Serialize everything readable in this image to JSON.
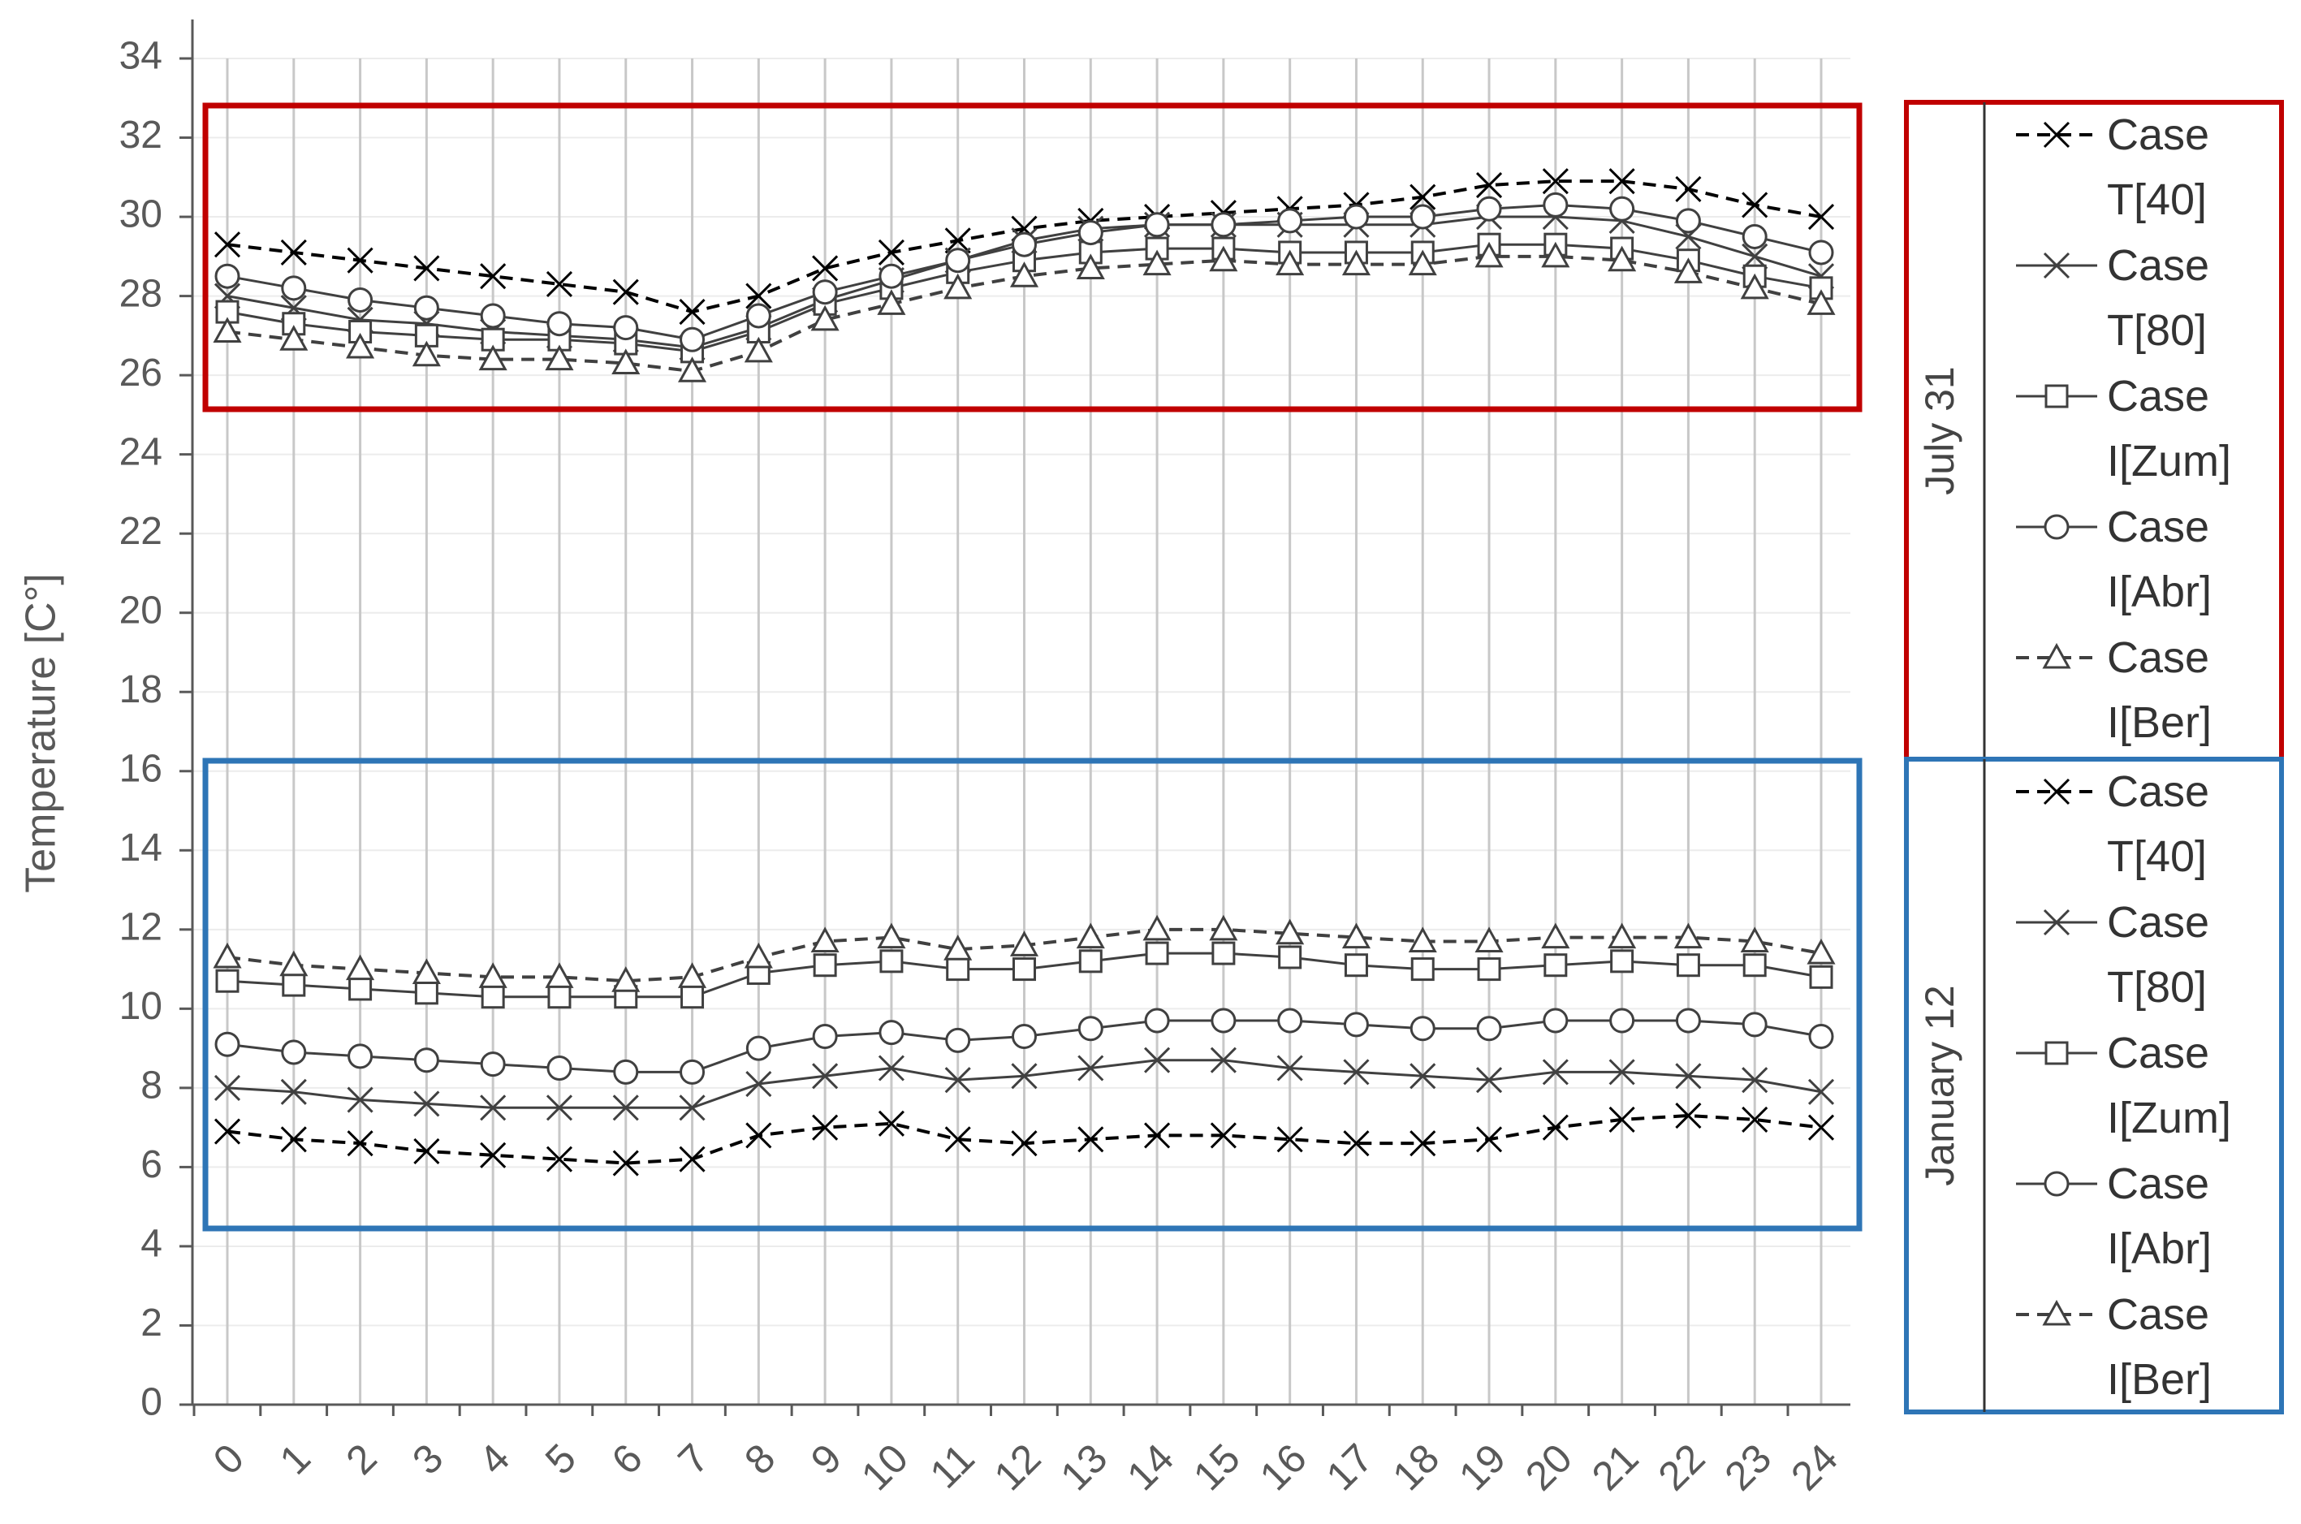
{
  "chart_data": {
    "type": "line",
    "y_label": "Temperature [C°]",
    "categories": [
      "0",
      "1",
      "2",
      "3",
      "4",
      "5",
      "6",
      "7",
      "8",
      "9",
      "10",
      "11",
      "12",
      "13",
      "14",
      "15",
      "16",
      "17",
      "18",
      "19",
      "20",
      "21",
      "22",
      "23",
      "24"
    ],
    "ylim": [
      0,
      34
    ],
    "yticks": [
      0,
      2,
      4,
      6,
      8,
      10,
      12,
      14,
      16,
      18,
      20,
      22,
      24,
      26,
      28,
      30,
      32,
      34
    ],
    "grid": true,
    "groups": [
      {
        "name": "July 31",
        "color": "#c00000",
        "series": [
          {
            "name": "Case T[40]",
            "color": "#000000",
            "dashed": true,
            "marker": "x",
            "values": [
              29.3,
              29.1,
              28.9,
              28.7,
              28.5,
              28.3,
              28.1,
              27.6,
              28.0,
              28.7,
              29.1,
              29.4,
              29.7,
              29.9,
              30.0,
              30.1,
              30.2,
              30.3,
              30.5,
              30.8,
              30.9,
              30.9,
              30.7,
              30.3,
              30.0
            ]
          },
          {
            "name": "Case T[80]",
            "color": "#404040",
            "dashed": false,
            "marker": "x",
            "values": [
              28.0,
              27.7,
              27.4,
              27.3,
              27.1,
              27.0,
              26.9,
              26.7,
              27.2,
              27.9,
              28.4,
              28.9,
              29.4,
              29.7,
              29.8,
              29.8,
              29.8,
              29.8,
              29.8,
              30.0,
              30.0,
              29.9,
              29.5,
              29.0,
              28.5
            ]
          },
          {
            "name": "Case I[Zum]",
            "color": "#404040",
            "dashed": false,
            "marker": "square",
            "values": [
              27.6,
              27.3,
              27.1,
              27.0,
              26.9,
              26.9,
              26.8,
              26.6,
              27.1,
              27.8,
              28.2,
              28.6,
              28.9,
              29.1,
              29.2,
              29.2,
              29.1,
              29.1,
              29.1,
              29.3,
              29.3,
              29.2,
              28.9,
              28.5,
              28.2
            ]
          },
          {
            "name": "Case I[Abr]",
            "color": "#404040",
            "dashed": false,
            "marker": "circle",
            "values": [
              28.5,
              28.2,
              27.9,
              27.7,
              27.5,
              27.3,
              27.2,
              26.9,
              27.5,
              28.1,
              28.5,
              28.9,
              29.3,
              29.6,
              29.8,
              29.8,
              29.9,
              30.0,
              30.0,
              30.2,
              30.3,
              30.2,
              29.9,
              29.5,
              29.1
            ]
          },
          {
            "name": "Case I[Ber]",
            "color": "#404040",
            "dashed": true,
            "marker": "triangle",
            "values": [
              27.1,
              26.9,
              26.7,
              26.5,
              26.4,
              26.4,
              26.3,
              26.1,
              26.6,
              27.4,
              27.8,
              28.2,
              28.5,
              28.7,
              28.8,
              28.9,
              28.8,
              28.8,
              28.8,
              29.0,
              29.0,
              28.9,
              28.6,
              28.2,
              27.8
            ]
          }
        ]
      },
      {
        "name": "January 12",
        "color": "#2e75b6",
        "series": [
          {
            "name": "Case T[40]",
            "color": "#000000",
            "dashed": true,
            "marker": "x",
            "values": [
              6.9,
              6.7,
              6.6,
              6.4,
              6.3,
              6.2,
              6.1,
              6.2,
              6.8,
              7.0,
              7.1,
              6.7,
              6.6,
              6.7,
              6.8,
              6.8,
              6.7,
              6.6,
              6.6,
              6.7,
              7.0,
              7.2,
              7.3,
              7.2,
              7.0
            ]
          },
          {
            "name": "Case T[80]",
            "color": "#404040",
            "dashed": false,
            "marker": "x",
            "values": [
              8.0,
              7.9,
              7.7,
              7.6,
              7.5,
              7.5,
              7.5,
              7.5,
              8.1,
              8.3,
              8.5,
              8.2,
              8.3,
              8.5,
              8.7,
              8.7,
              8.5,
              8.4,
              8.3,
              8.2,
              8.4,
              8.4,
              8.3,
              8.2,
              7.9
            ]
          },
          {
            "name": "Case I[Zum]",
            "color": "#404040",
            "dashed": false,
            "marker": "square",
            "values": [
              10.7,
              10.6,
              10.5,
              10.4,
              10.3,
              10.3,
              10.3,
              10.3,
              10.9,
              11.1,
              11.2,
              11.0,
              11.0,
              11.2,
              11.4,
              11.4,
              11.3,
              11.1,
              11.0,
              11.0,
              11.1,
              11.2,
              11.1,
              11.1,
              10.8
            ]
          },
          {
            "name": "Case I[Abr]",
            "color": "#404040",
            "dashed": false,
            "marker": "circle",
            "values": [
              9.1,
              8.9,
              8.8,
              8.7,
              8.6,
              8.5,
              8.4,
              8.4,
              9.0,
              9.3,
              9.4,
              9.2,
              9.3,
              9.5,
              9.7,
              9.7,
              9.7,
              9.6,
              9.5,
              9.5,
              9.7,
              9.7,
              9.7,
              9.6,
              9.3
            ]
          },
          {
            "name": "Case I[Ber]",
            "color": "#404040",
            "dashed": true,
            "marker": "triangle",
            "values": [
              11.3,
              11.1,
              11.0,
              10.9,
              10.8,
              10.8,
              10.7,
              10.8,
              11.3,
              11.7,
              11.8,
              11.5,
              11.6,
              11.8,
              12.0,
              12.0,
              11.9,
              11.8,
              11.7,
              11.7,
              11.8,
              11.8,
              11.8,
              11.7,
              11.4
            ]
          }
        ]
      }
    ]
  }
}
